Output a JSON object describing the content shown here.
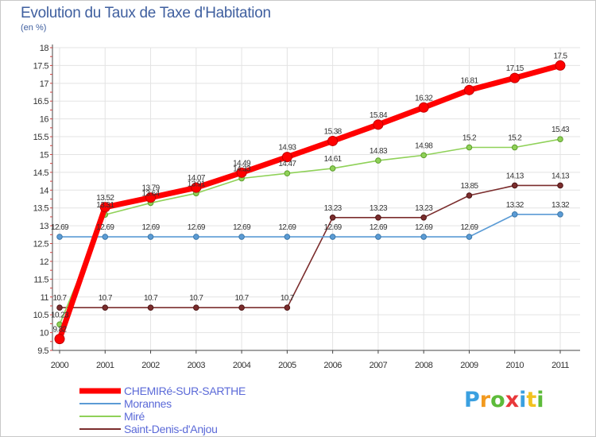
{
  "header": {
    "title": "Evolution du Taux de Taxe d'Habitation",
    "subtitle": "(en %)"
  },
  "chart_data": {
    "type": "line",
    "title": "Evolution du Taux de Taxe d'Habitation",
    "ylabel": "(en %)",
    "xlabel": "",
    "x": [
      "2000",
      "2001",
      "2002",
      "2003",
      "2004",
      "2005",
      "2006",
      "2007",
      "2008",
      "2009",
      "2010",
      "2011"
    ],
    "ylim": [
      9.5,
      18
    ],
    "yticks": [
      "9.5",
      "10",
      "10.5",
      "11",
      "11.5",
      "12",
      "12.5",
      "13",
      "13.5",
      "14",
      "14.5",
      "15",
      "15.5",
      "16",
      "16.5",
      "17",
      "17.5",
      "18"
    ],
    "grid": true,
    "legend_position": "bottom-left",
    "series": [
      {
        "name": "CHEMIRé-SUR-SARTHE",
        "color": "#ff0000",
        "values": [
          9.82,
          13.52,
          13.79,
          14.07,
          14.49,
          14.93,
          15.38,
          15.84,
          16.32,
          16.81,
          17.15,
          17.5
        ],
        "labels": [
          "9.82",
          "13.52",
          "13.79",
          "14.07",
          "14.49",
          "14.93",
          "15.38",
          "15.84",
          "16.32",
          "16.81",
          "17.15",
          "17.5"
        ]
      },
      {
        "name": "Morannes",
        "color": "#5b9bd5",
        "values": [
          12.69,
          12.69,
          12.69,
          12.69,
          12.69,
          12.69,
          12.69,
          12.69,
          12.69,
          12.69,
          13.32,
          13.32
        ],
        "labels": [
          "12.69",
          "12.69",
          "12.69",
          "12.69",
          "12.69",
          "12.69",
          "12.69",
          "12.69",
          "12.69",
          "12.69",
          "13.32",
          "13.32"
        ]
      },
      {
        "name": "Miré",
        "color": "#8fd158",
        "values": [
          10.23,
          13.31,
          13.64,
          13.91,
          14.33,
          14.47,
          14.61,
          14.83,
          14.98,
          15.2,
          15.2,
          15.43
        ],
        "labels": [
          "10.23",
          "13.31",
          "13.64",
          "13.91",
          "14.33",
          "14.47",
          "14.61",
          "14.83",
          "14.98",
          "15.2",
          "15.2",
          "15.43"
        ]
      },
      {
        "name": "Saint-Denis-d'Anjou",
        "color": "#7b2d2d",
        "values": [
          10.7,
          10.7,
          10.7,
          10.7,
          10.7,
          10.7,
          13.23,
          13.23,
          13.23,
          13.85,
          14.13,
          14.13
        ],
        "labels": [
          "10.7",
          "10.7",
          "10.7",
          "10.7",
          "10.7",
          "10.7",
          "13.23",
          "13.23",
          "13.23",
          "13.85",
          "14.13",
          "14.13"
        ]
      }
    ]
  },
  "legend": {
    "items": [
      {
        "label": "CHEMIRé-SUR-SARTHE",
        "color": "#ff0000"
      },
      {
        "label": "Morannes",
        "color": "#5b9bd5"
      },
      {
        "label": "Miré",
        "color": "#8fd158"
      },
      {
        "label": "Saint-Denis-d'Anjou",
        "color": "#7b2d2d"
      }
    ]
  },
  "logo": {
    "letters": [
      "P",
      "r",
      "o",
      "x",
      "i",
      "t",
      "i"
    ],
    "colors": [
      "#3aa0e0",
      "#f29a1f",
      "#5dbb3a",
      "#e8383a",
      "#3aa0e0",
      "#f2c21f",
      "#5dbb3a"
    ]
  }
}
